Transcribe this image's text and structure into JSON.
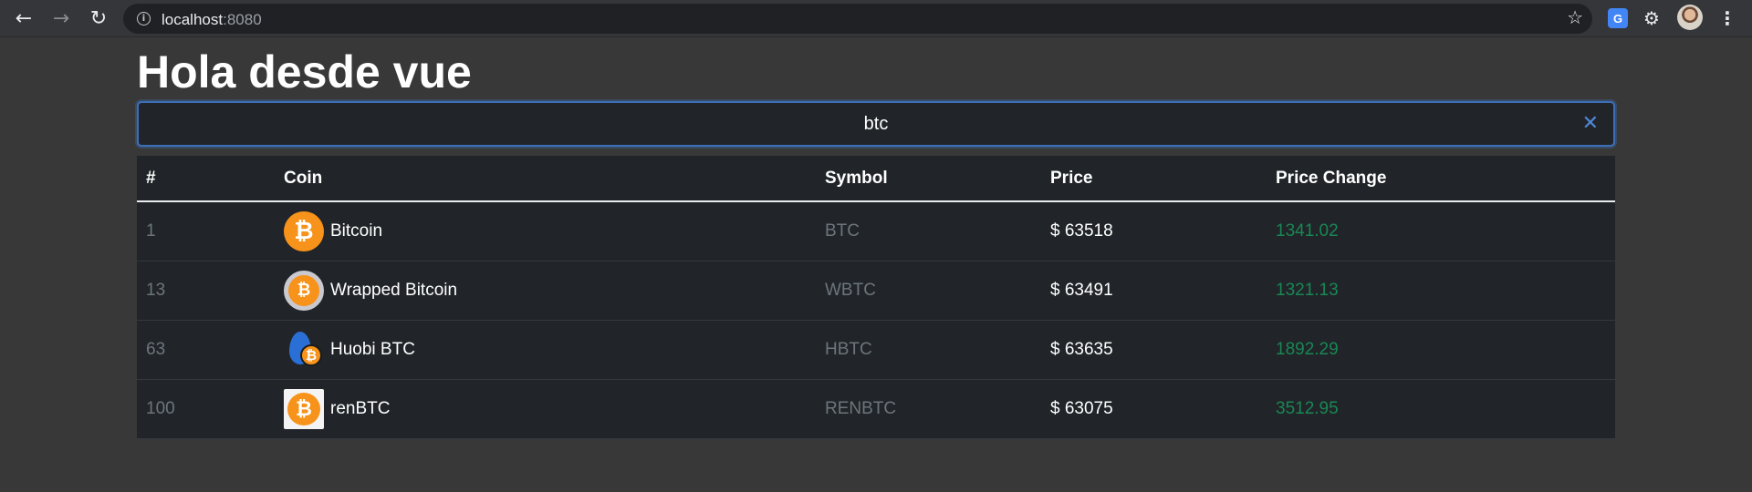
{
  "browser": {
    "url_host": "localhost",
    "url_port": ":8080"
  },
  "page": {
    "title": "Hola desde vue",
    "search": {
      "value": "btc",
      "clear_symbol": "✕"
    }
  },
  "table": {
    "headers": [
      "#",
      "Coin",
      "Symbol",
      "Price",
      "Price Change"
    ],
    "rows": [
      {
        "rank": "1",
        "name": "Bitcoin",
        "symbol": "BTC",
        "price": "$ 63518",
        "change": "1341.02",
        "logo": "bitcoin-logo-icon"
      },
      {
        "rank": "13",
        "name": "Wrapped Bitcoin",
        "symbol": "WBTC",
        "price": "$ 63491",
        "change": "1321.13",
        "logo": "wrapped-bitcoin-logo-icon"
      },
      {
        "rank": "63",
        "name": "Huobi BTC",
        "symbol": "HBTC",
        "price": "$ 63635",
        "change": "1892.29",
        "logo": "huobi-btc-logo-icon"
      },
      {
        "rank": "100",
        "name": "renBTC",
        "symbol": "RENBTC",
        "price": "$ 63075",
        "change": "3512.95",
        "logo": "renbtc-logo-icon"
      }
    ]
  },
  "colors": {
    "change_positive": "#198754",
    "muted": "#6c757d",
    "accent": "#3d6fb8"
  }
}
